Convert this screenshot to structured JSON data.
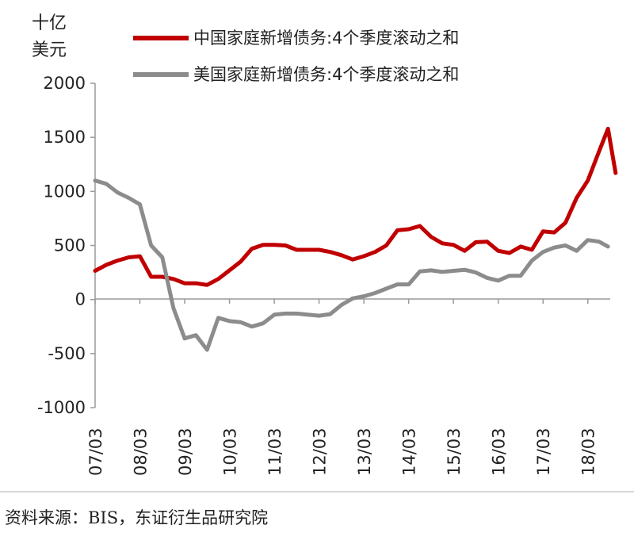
{
  "chart_data": {
    "type": "line",
    "ylabel_line1": "十亿",
    "ylabel_line2": "美元",
    "ylim": [
      -1000,
      2000
    ],
    "yticks": [
      "2000",
      "1500",
      "1000",
      "500",
      "0",
      "-500",
      "-1000"
    ],
    "ytick_values": [
      2000,
      1500,
      1000,
      500,
      0,
      -500,
      -1000
    ],
    "xticks": [
      "07/03",
      "08/03",
      "09/03",
      "10/03",
      "11/03",
      "12/03",
      "13/03",
      "14/03",
      "15/03",
      "16/03",
      "17/03",
      "18/03"
    ],
    "xlim": [
      2007.0,
      2018.5
    ],
    "grid": false,
    "legend_position": "top",
    "series": [
      {
        "name": "中国家庭新增债务:4个季度滚动之和",
        "color": "#c00000",
        "points": [
          [
            2007.0,
            265
          ],
          [
            2007.25,
            320
          ],
          [
            2007.5,
            360
          ],
          [
            2007.75,
            390
          ],
          [
            2008.0,
            400
          ],
          [
            2008.25,
            210
          ],
          [
            2008.5,
            210
          ],
          [
            2008.75,
            190
          ],
          [
            2009.0,
            150
          ],
          [
            2009.25,
            150
          ],
          [
            2009.5,
            135
          ],
          [
            2009.75,
            190
          ],
          [
            2010.0,
            270
          ],
          [
            2010.25,
            350
          ],
          [
            2010.5,
            470
          ],
          [
            2010.75,
            505
          ],
          [
            2011.0,
            505
          ],
          [
            2011.25,
            500
          ],
          [
            2011.5,
            460
          ],
          [
            2011.75,
            460
          ],
          [
            2012.0,
            460
          ],
          [
            2012.25,
            440
          ],
          [
            2012.5,
            410
          ],
          [
            2012.75,
            370
          ],
          [
            2013.0,
            400
          ],
          [
            2013.25,
            440
          ],
          [
            2013.5,
            500
          ],
          [
            2013.75,
            640
          ],
          [
            2014.0,
            650
          ],
          [
            2014.25,
            680
          ],
          [
            2014.5,
            580
          ],
          [
            2014.75,
            520
          ],
          [
            2015.0,
            505
          ],
          [
            2015.25,
            450
          ],
          [
            2015.5,
            530
          ],
          [
            2015.75,
            535
          ],
          [
            2016.0,
            450
          ],
          [
            2016.25,
            430
          ],
          [
            2016.5,
            490
          ],
          [
            2016.75,
            460
          ],
          [
            2017.0,
            630
          ],
          [
            2017.25,
            620
          ],
          [
            2017.5,
            710
          ],
          [
            2017.75,
            940
          ],
          [
            2018.0,
            1100
          ],
          [
            2018.25,
            1370
          ],
          [
            2018.45,
            1580
          ],
          [
            2018.62,
            1170
          ]
        ]
      },
      {
        "name": "美国家庭新增债务:4个季度滚动之和",
        "color": "#8c8c8c",
        "points": [
          [
            2007.0,
            1100
          ],
          [
            2007.25,
            1070
          ],
          [
            2007.5,
            990
          ],
          [
            2007.75,
            940
          ],
          [
            2008.0,
            880
          ],
          [
            2008.25,
            500
          ],
          [
            2008.5,
            390
          ],
          [
            2008.75,
            -80
          ],
          [
            2009.0,
            -360
          ],
          [
            2009.25,
            -330
          ],
          [
            2009.5,
            -465
          ],
          [
            2009.75,
            -170
          ],
          [
            2010.0,
            -200
          ],
          [
            2010.25,
            -210
          ],
          [
            2010.5,
            -250
          ],
          [
            2010.75,
            -220
          ],
          [
            2011.0,
            -140
          ],
          [
            2011.25,
            -130
          ],
          [
            2011.5,
            -130
          ],
          [
            2011.75,
            -140
          ],
          [
            2012.0,
            -150
          ],
          [
            2012.25,
            -135
          ],
          [
            2012.5,
            -50
          ],
          [
            2012.75,
            10
          ],
          [
            2013.0,
            30
          ],
          [
            2013.25,
            60
          ],
          [
            2013.5,
            100
          ],
          [
            2013.75,
            140
          ],
          [
            2014.0,
            140
          ],
          [
            2014.25,
            260
          ],
          [
            2014.5,
            270
          ],
          [
            2014.75,
            255
          ],
          [
            2015.0,
            265
          ],
          [
            2015.25,
            275
          ],
          [
            2015.5,
            250
          ],
          [
            2015.75,
            200
          ],
          [
            2016.0,
            175
          ],
          [
            2016.25,
            220
          ],
          [
            2016.5,
            220
          ],
          [
            2016.75,
            360
          ],
          [
            2017.0,
            440
          ],
          [
            2017.25,
            480
          ],
          [
            2017.5,
            500
          ],
          [
            2017.75,
            450
          ],
          [
            2018.0,
            550
          ],
          [
            2018.25,
            535
          ],
          [
            2018.45,
            490
          ]
        ]
      }
    ]
  },
  "source_note": "资料来源：BIS，东证衍生品研究院"
}
